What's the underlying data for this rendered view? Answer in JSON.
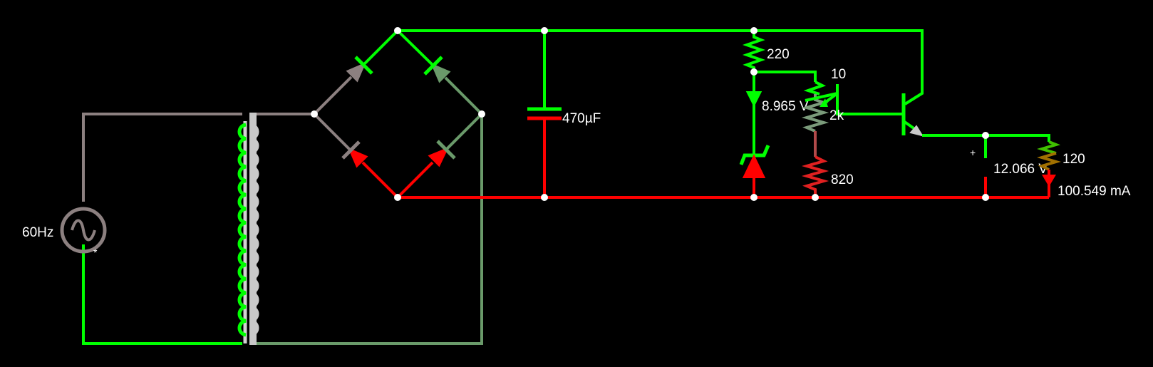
{
  "colors": {
    "background": "#000000",
    "positive": "#00ff00",
    "negative": "#ff0000",
    "ac_primary": "#8c8080",
    "ac_secondary": "#6a9a6a",
    "transformer_core": "#b4b4b4",
    "label": "#ffffff"
  },
  "source": {
    "freq_label": "60Hz",
    "marker": "*"
  },
  "capacitor": {
    "label": "470µF"
  },
  "resistors": {
    "r220": "220",
    "r10": "10",
    "pot": "2k",
    "r820": "820",
    "load": "120"
  },
  "readouts": {
    "zener_voltage": "8.965 V",
    "output_voltage": "12.066 V",
    "load_current": "100.549 mA",
    "voltmeter_plus": "+"
  },
  "icons": [
    "ac-source-icon",
    "transformer-icon",
    "diode-icon",
    "capacitor-icon",
    "resistor-icon",
    "zener-diode-icon",
    "npn-transistor-icon",
    "potentiometer-icon",
    "voltmeter-icon",
    "current-arrow-icon"
  ]
}
